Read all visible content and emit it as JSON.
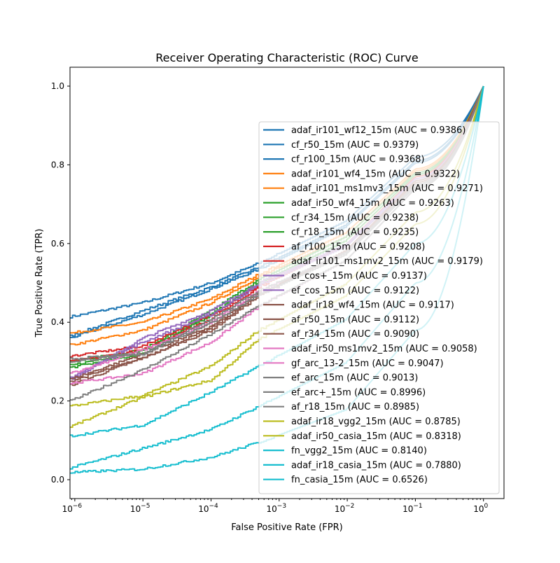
{
  "chart_data": {
    "type": "line",
    "title": "Receiver Operating Characteristic (ROC) Curve",
    "xlabel": "False Positive Rate (FPR)",
    "ylabel": "True Positive Rate (TPR)",
    "x_scale": "log",
    "xlim": [
      8.5e-07,
      2.0
    ],
    "ylim": [
      -0.048,
      1.048
    ],
    "grid": false,
    "legend_position": "center-right",
    "x_ticks": [
      {
        "base": "10",
        "exp": "−6"
      },
      {
        "base": "10",
        "exp": "−5"
      },
      {
        "base": "10",
        "exp": "−4"
      },
      {
        "base": "10",
        "exp": "−3"
      },
      {
        "base": "10",
        "exp": "−2"
      },
      {
        "base": "10",
        "exp": "−1"
      },
      {
        "base": "10",
        "exp": "0"
      }
    ],
    "y_ticks": [
      "0.0",
      "0.2",
      "0.4",
      "0.6",
      "0.8",
      "1.0"
    ],
    "x": [
      8.5e-07,
      1e-05,
      0.0001,
      0.0005,
      0.01,
      0.1,
      1
    ],
    "series": [
      {
        "name": "adaf_ir101_wf12_15m (AUC = 0.9386)",
        "color": "#1f77b4",
        "values": [
          0.414,
          0.45,
          0.5,
          0.55,
          0.66,
          0.82,
          1
        ]
      },
      {
        "name": "cf_r50_15m (AUC = 0.9379)",
        "color": "#1f77b4",
        "values": [
          0.365,
          0.43,
          0.49,
          0.54,
          0.65,
          0.81,
          1
        ]
      },
      {
        "name": "cf_r100_15m (AUC = 0.9368)",
        "color": "#1f77b4",
        "values": [
          0.36,
          0.42,
          0.485,
          0.535,
          0.645,
          0.805,
          1
        ]
      },
      {
        "name": "adaf_ir101_wf4_15m (AUC = 0.9322)",
        "color": "#ff7f0e",
        "values": [
          0.372,
          0.4,
          0.46,
          0.522,
          0.63,
          0.79,
          1
        ]
      },
      {
        "name": "adaf_ir101_ms1mv3_15m (AUC = 0.9271)",
        "color": "#ff7f0e",
        "values": [
          0.342,
          0.38,
          0.45,
          0.515,
          0.62,
          0.785,
          1
        ]
      },
      {
        "name": "adaf_ir50_wf4_15m (AUC = 0.9263)",
        "color": "#2ca02c",
        "values": [
          0.29,
          0.33,
          0.43,
          0.508,
          0.62,
          0.78,
          1
        ]
      },
      {
        "name": "cf_r34_15m (AUC = 0.9238)",
        "color": "#2ca02c",
        "values": [
          0.3,
          0.33,
          0.42,
          0.5,
          0.61,
          0.775,
          1
        ]
      },
      {
        "name": "cf_r18_15m (AUC = 0.9235)",
        "color": "#2ca02c",
        "values": [
          0.285,
          0.32,
          0.42,
          0.5,
          0.61,
          0.775,
          1
        ]
      },
      {
        "name": "af_r100_15m (AUC = 0.9208)",
        "color": "#d62728",
        "values": [
          0.314,
          0.34,
          0.42,
          0.494,
          0.6,
          0.77,
          1
        ]
      },
      {
        "name": "adaf_ir101_ms1mv2_15m (AUC = 0.9179)",
        "color": "#d62728",
        "values": [
          0.3,
          0.33,
          0.41,
          0.49,
          0.6,
          0.77,
          1
        ]
      },
      {
        "name": "ef_cos+_15m (AUC = 0.9137)",
        "color": "#9467bd",
        "values": [
          0.254,
          0.36,
          0.43,
          0.5,
          0.6,
          0.765,
          1
        ]
      },
      {
        "name": "ef_cos_15m (AUC = 0.9122)",
        "color": "#9467bd",
        "values": [
          0.26,
          0.35,
          0.42,
          0.495,
          0.595,
          0.76,
          1
        ]
      },
      {
        "name": "adaf_ir18_wf4_15m (AUC = 0.9117)",
        "color": "#8c564b",
        "values": [
          0.24,
          0.31,
          0.38,
          0.467,
          0.585,
          0.76,
          1
        ]
      },
      {
        "name": "af_r50_15m (AUC = 0.9112)",
        "color": "#8c564b",
        "values": [
          0.25,
          0.31,
          0.385,
          0.47,
          0.585,
          0.755,
          1
        ]
      },
      {
        "name": "af_r34_15m (AUC = 0.9090)",
        "color": "#8c564b",
        "values": [
          0.255,
          0.32,
          0.39,
          0.475,
          0.58,
          0.75,
          1
        ]
      },
      {
        "name": "adaf_ir50_ms1mv2_15m (AUC = 0.9058)",
        "color": "#e377c2",
        "values": [
          0.27,
          0.33,
          0.4,
          0.48,
          0.58,
          0.75,
          1
        ]
      },
      {
        "name": "gf_arc_13-2_15m (AUC = 0.9047)",
        "color": "#e377c2",
        "values": [
          0.245,
          0.27,
          0.35,
          0.44,
          0.56,
          0.74,
          1
        ]
      },
      {
        "name": "ef_arc_15m (AUC = 0.9013)",
        "color": "#7f7f7f",
        "values": [
          0.307,
          0.32,
          0.41,
          0.48,
          0.58,
          0.75,
          1
        ]
      },
      {
        "name": "ef_arc+_15m (AUC = 0.8996)",
        "color": "#7f7f7f",
        "values": [
          0.3,
          0.32,
          0.4,
          0.47,
          0.575,
          0.745,
          1
        ]
      },
      {
        "name": "af_r18_15m (AUC = 0.8985)",
        "color": "#7f7f7f",
        "values": [
          0.2,
          0.28,
          0.37,
          0.442,
          0.56,
          0.74,
          1
        ]
      },
      {
        "name": "adaf_ir18_vgg2_15m (AUC = 0.8785)",
        "color": "#bcbd22",
        "values": [
          0.187,
          0.214,
          0.289,
          0.38,
          0.5,
          0.68,
          1
        ]
      },
      {
        "name": "adaf_ir50_casia_15m (AUC = 0.8318)",
        "color": "#bcbd22",
        "values": [
          0.135,
          0.21,
          0.253,
          0.357,
          0.47,
          0.65,
          1
        ]
      },
      {
        "name": "fn_vgg2_15m (AUC = 0.8140)",
        "color": "#17becf",
        "values": [
          0.111,
          0.139,
          0.223,
          0.289,
          0.41,
          0.6,
          1
        ]
      },
      {
        "name": "adaf_ir18_casia_15m (AUC = 0.7880)",
        "color": "#17becf",
        "values": [
          0.03,
          0.08,
          0.128,
          0.187,
          0.3,
          0.5,
          1
        ]
      },
      {
        "name": "fn_casia_15m (AUC = 0.6526)",
        "color": "#17becf",
        "values": [
          0.018,
          0.027,
          0.057,
          0.095,
          0.18,
          0.38,
          1
        ]
      }
    ]
  }
}
